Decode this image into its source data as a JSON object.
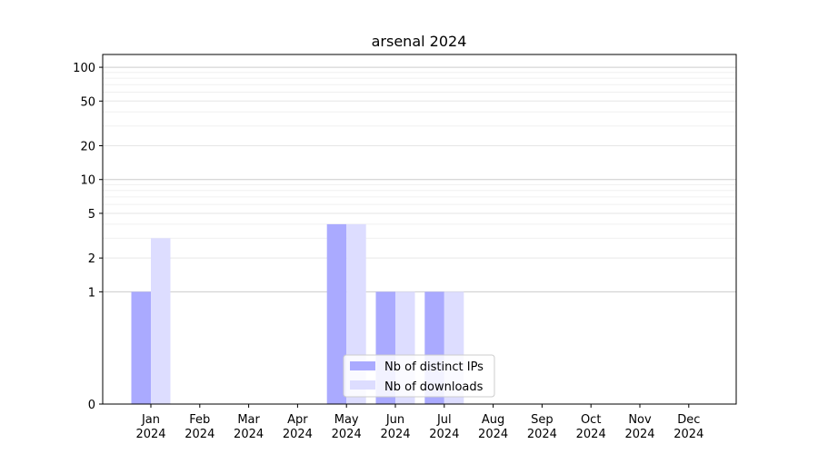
{
  "chart_data": {
    "type": "bar",
    "title": "arsenal 2024",
    "xlabel": "",
    "ylabel": "",
    "yscale": "symlog",
    "ylim": [
      0,
      130
    ],
    "yticks": [
      0,
      1,
      2,
      5,
      10,
      20,
      50,
      100
    ],
    "ytick_labels": [
      "0",
      "1",
      "2",
      "5",
      "10",
      "20",
      "50",
      "100"
    ],
    "categories": [
      [
        "Jan",
        "2024"
      ],
      [
        "Feb",
        "2024"
      ],
      [
        "Mar",
        "2024"
      ],
      [
        "Apr",
        "2024"
      ],
      [
        "May",
        "2024"
      ],
      [
        "Jun",
        "2024"
      ],
      [
        "Jul",
        "2024"
      ],
      [
        "Aug",
        "2024"
      ],
      [
        "Sep",
        "2024"
      ],
      [
        "Oct",
        "2024"
      ],
      [
        "Nov",
        "2024"
      ],
      [
        "Dec",
        "2024"
      ]
    ],
    "series": [
      {
        "name": "Nb of distinct IPs",
        "color": "#aaaaff",
        "values": [
          1,
          0,
          0,
          0,
          4,
          1,
          1,
          0,
          0,
          0,
          0,
          0
        ]
      },
      {
        "name": "Nb of downloads",
        "color": "#ddddff",
        "values": [
          3,
          0,
          0,
          0,
          4,
          1,
          1,
          0,
          0,
          0,
          0,
          0
        ]
      }
    ],
    "grid": true,
    "legend_position": "lower-center"
  }
}
